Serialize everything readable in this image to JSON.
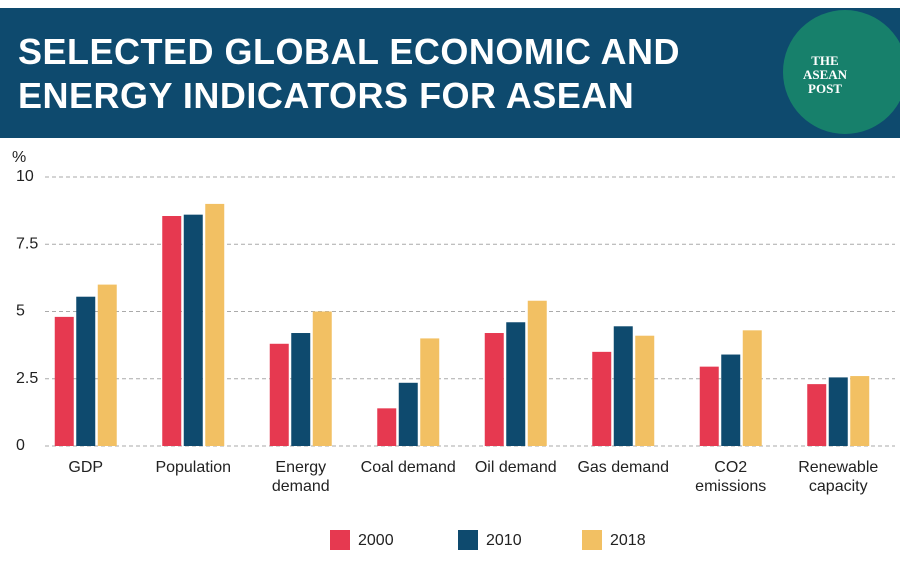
{
  "logo": "THE ASEAN POST",
  "chart_data": {
    "type": "bar",
    "title": "SELECTED GLOBAL ECONOMIC AND ENERGY INDICATORS FOR ASEAN",
    "y_label": "%",
    "categories": [
      "GDP",
      "Population",
      "Energy demand",
      "Coal demand",
      "Oil demand",
      "Gas demand",
      "CO2 emissions",
      "Renewable capacity"
    ],
    "series": [
      {
        "name": "2000",
        "color": "#e63950",
        "values": [
          4.8,
          8.55,
          3.8,
          1.4,
          4.2,
          3.5,
          2.95,
          2.3
        ]
      },
      {
        "name": "2010",
        "color": "#0e4a6e",
        "values": [
          5.55,
          8.6,
          4.2,
          2.35,
          4.6,
          4.45,
          3.4,
          2.55
        ]
      },
      {
        "name": "2018",
        "color": "#f2c063",
        "values": [
          6.0,
          9.0,
          5.0,
          4.0,
          5.4,
          4.1,
          4.3,
          2.6
        ]
      }
    ],
    "ylim": [
      0,
      10
    ],
    "yticks": [
      0,
      2.5,
      5,
      7.5,
      10
    ],
    "grid": true
  }
}
